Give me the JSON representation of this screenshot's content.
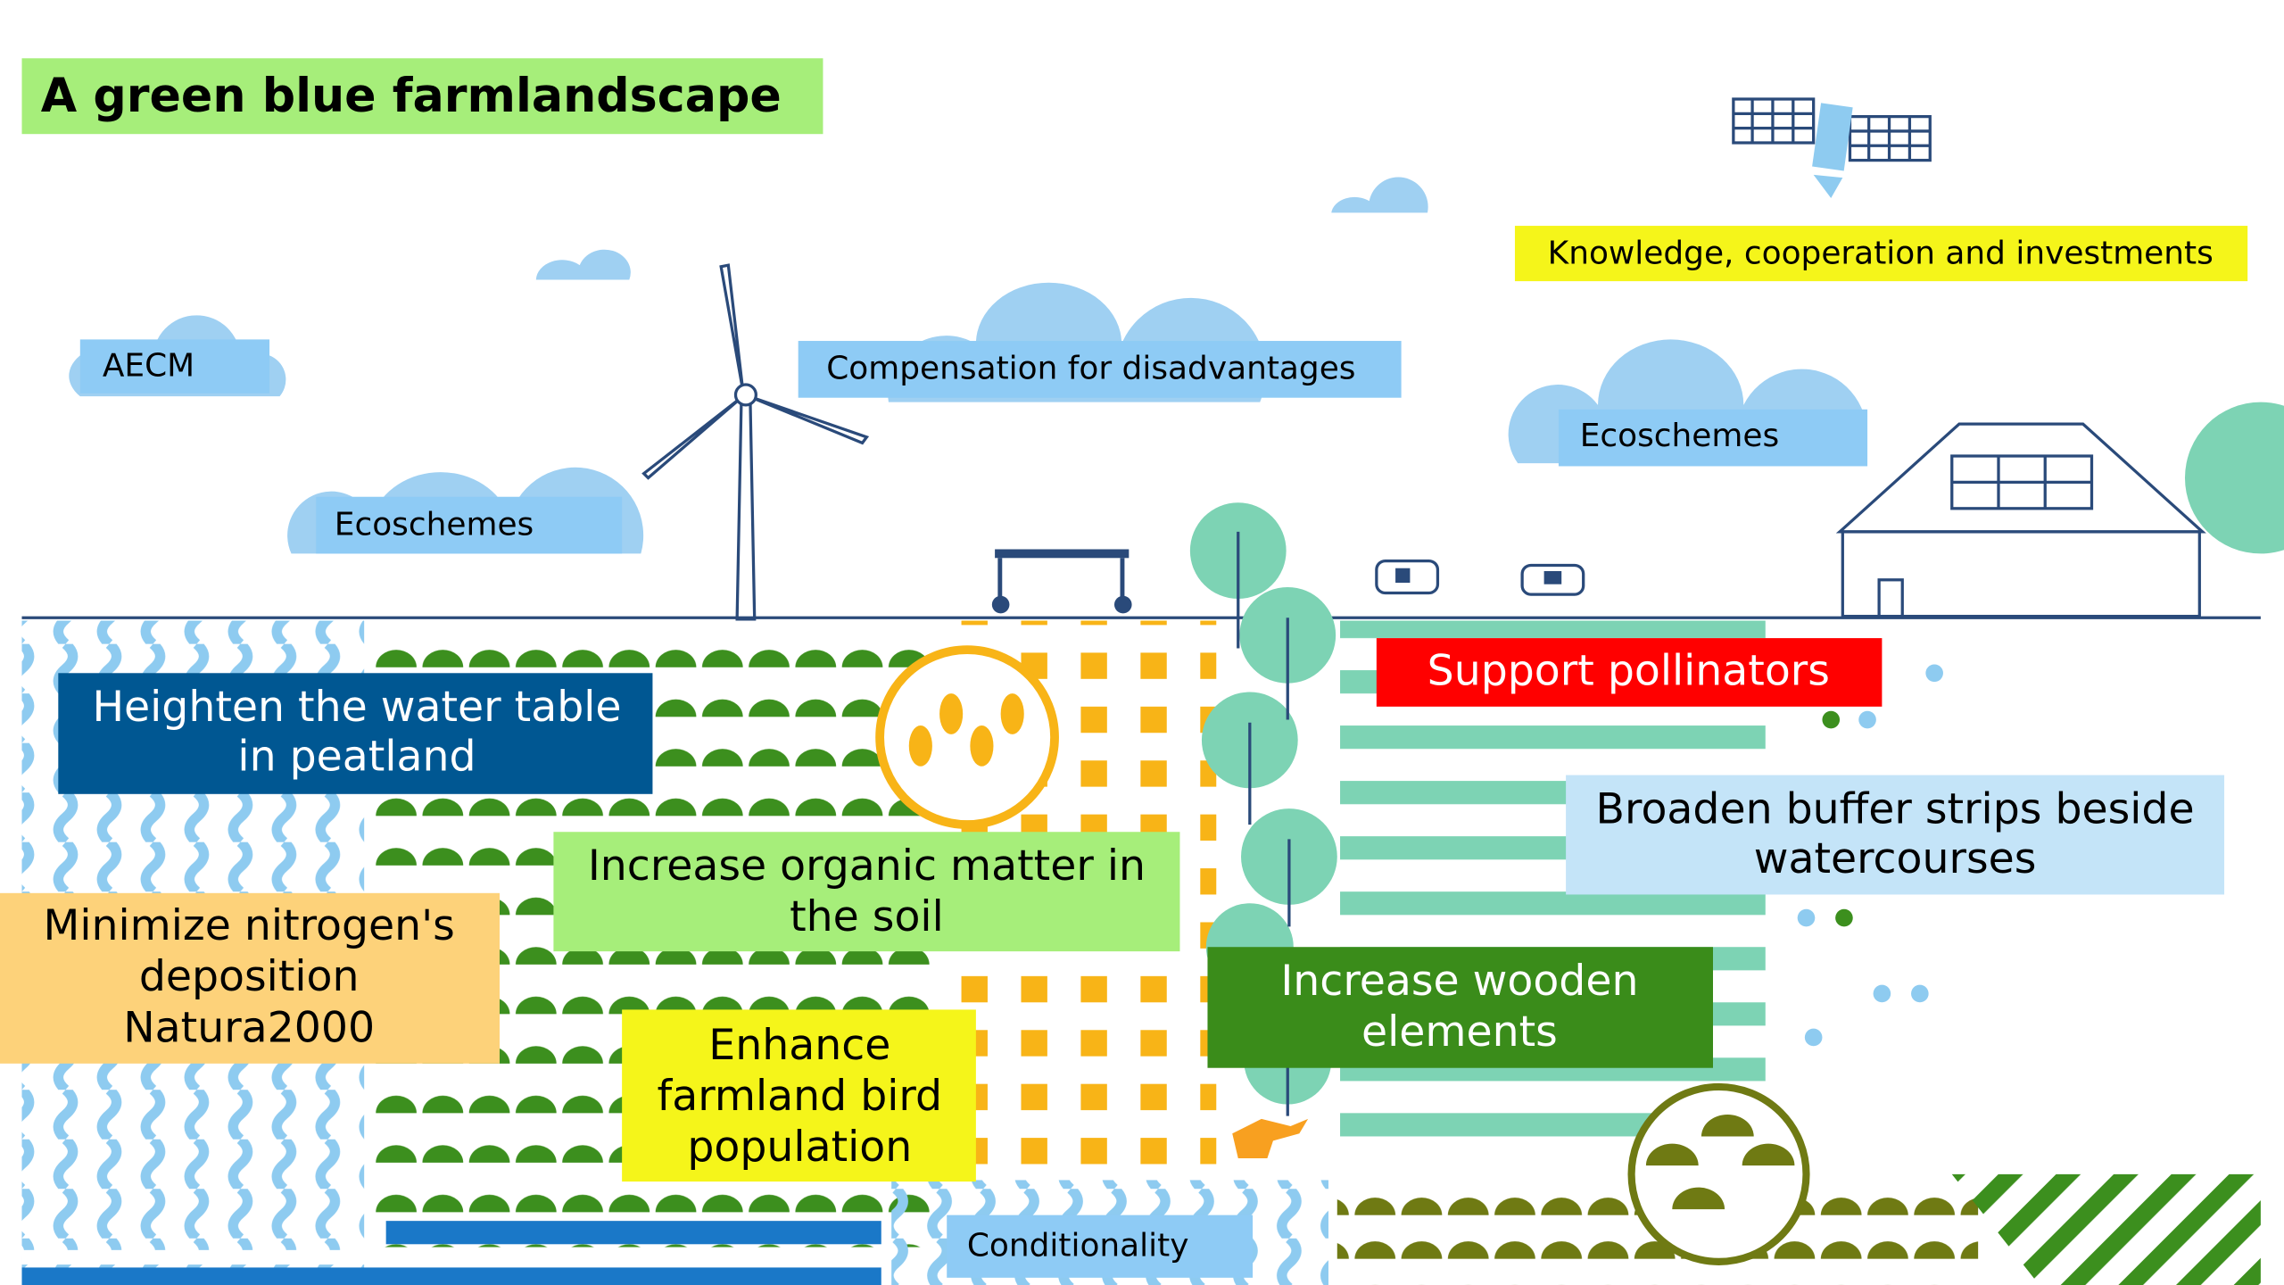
{
  "title": "A green blue farmlandscape",
  "labels": {
    "knowledge": {
      "lines": [
        "Knowledge, cooperation and investments"
      ]
    },
    "aecm": {
      "lines": [
        "AECM"
      ]
    },
    "compensation": {
      "lines": [
        "Compensation for disadvantages"
      ]
    },
    "ecoschemes_right": {
      "lines": [
        "Ecoschemes"
      ]
    },
    "ecoschemes_left": {
      "lines": [
        "Ecoschemes"
      ]
    },
    "pollinators": {
      "lines": [
        "Support pollinators"
      ]
    },
    "water_table": {
      "lines": [
        "Heighten the water table",
        "in peatland"
      ]
    },
    "buffer_strips": {
      "lines": [
        "Broaden buffer strips beside",
        "watercourses"
      ]
    },
    "nitrogen": {
      "lines": [
        "Minimize nitrogen's",
        "deposition",
        "Natura2000"
      ]
    },
    "organic_matter": {
      "lines": [
        "Increase organic matter in",
        "the soil"
      ]
    },
    "wooden": {
      "lines": [
        "Increase wooden",
        "elements"
      ]
    },
    "birds": {
      "lines": [
        "Enhance",
        "farmland bird",
        "population"
      ]
    },
    "conditionality": {
      "lines": [
        "Conditionality"
      ]
    }
  }
}
